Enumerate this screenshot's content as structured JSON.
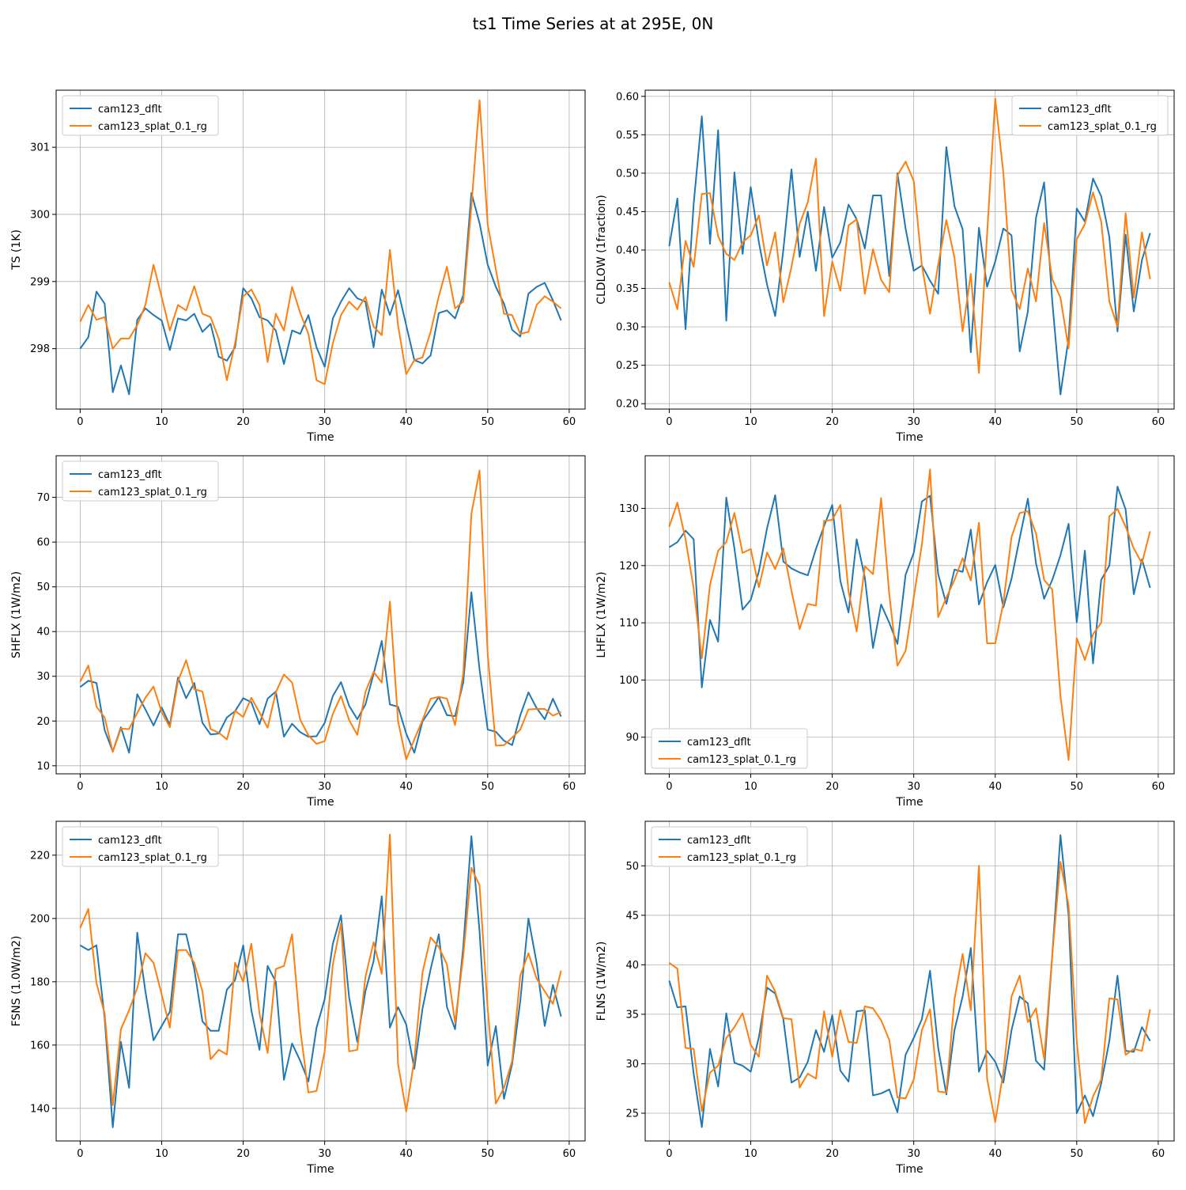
{
  "figure_title": "ts1 Time Series at at 295E, 0N",
  "colors": {
    "series1": "#1f77b4",
    "series2": "#ff7f0e",
    "grid": "#b0b0b0",
    "axis": "#000000"
  },
  "chart_data": [
    {
      "type": "line",
      "xlabel": "Time",
      "ylabel": "TS (1K)",
      "xlim": [
        -2.95,
        61.95
      ],
      "ylim": [
        297.1,
        301.85
      ],
      "xticks": [
        0,
        10,
        20,
        30,
        40,
        50,
        60
      ],
      "yticks": [
        298,
        299,
        300,
        301
      ],
      "legend_loc": "upper-left",
      "series": [
        {
          "name": "cam123_dflt",
          "values": [
            298.0,
            298.17,
            298.85,
            298.67,
            297.35,
            297.75,
            297.32,
            298.43,
            298.6,
            298.5,
            298.42,
            297.98,
            298.45,
            298.42,
            298.52,
            298.25,
            298.37,
            297.88,
            297.82,
            298.02,
            298.9,
            298.75,
            298.47,
            298.42,
            298.27,
            297.77,
            298.27,
            298.22,
            298.5,
            298.02,
            297.73,
            298.45,
            298.7,
            298.9,
            298.75,
            298.7,
            298.02,
            298.88,
            298.5,
            298.87,
            298.35,
            297.83,
            297.78,
            297.9,
            298.53,
            298.57,
            298.45,
            298.8,
            300.32,
            299.87,
            299.25,
            298.92,
            298.67,
            298.28,
            298.18,
            298.82,
            298.92,
            298.98,
            298.72,
            298.42
          ]
        },
        {
          "name": "cam123_splat_0.1_rg",
          "values": [
            298.4,
            298.65,
            298.43,
            298.47,
            298.0,
            298.15,
            298.15,
            298.35,
            298.65,
            299.25,
            298.77,
            298.27,
            298.65,
            298.57,
            298.93,
            298.52,
            298.47,
            298.15,
            297.53,
            298.08,
            298.78,
            298.88,
            298.65,
            297.8,
            298.52,
            298.27,
            298.92,
            298.53,
            298.22,
            297.53,
            297.47,
            298.08,
            298.5,
            298.7,
            298.58,
            298.77,
            298.33,
            298.2,
            299.47,
            298.35,
            297.62,
            297.83,
            297.87,
            298.25,
            298.78,
            299.22,
            298.6,
            298.7,
            300.12,
            301.7,
            299.85,
            299.18,
            298.52,
            298.5,
            298.22,
            298.25,
            298.65,
            298.78,
            298.7,
            298.6
          ]
        }
      ]
    },
    {
      "type": "line",
      "xlabel": "Time",
      "ylabel": "CLDLOW (1fraction)",
      "xlim": [
        -2.95,
        61.95
      ],
      "ylim": [
        0.193,
        0.608
      ],
      "xticks": [
        0,
        10,
        20,
        30,
        40,
        50,
        60
      ],
      "yticks": [
        0.2,
        0.25,
        0.3,
        0.35,
        0.4,
        0.45,
        0.5,
        0.55,
        0.6
      ],
      "ytick_labels": [
        "0.20",
        "0.25",
        "0.30",
        "0.35",
        "0.40",
        "0.45",
        "0.50",
        "0.55",
        "0.60"
      ],
      "legend_loc": "upper-right",
      "series": [
        {
          "name": "cam123_dflt",
          "values": [
            0.405,
            0.467,
            0.297,
            0.46,
            0.574,
            0.408,
            0.556,
            0.308,
            0.501,
            0.395,
            0.482,
            0.41,
            0.355,
            0.314,
            0.4,
            0.505,
            0.391,
            0.45,
            0.373,
            0.456,
            0.39,
            0.41,
            0.459,
            0.44,
            0.402,
            0.471,
            0.471,
            0.366,
            0.5,
            0.428,
            0.373,
            0.38,
            0.36,
            0.343,
            0.534,
            0.457,
            0.427,
            0.267,
            0.429,
            0.352,
            0.385,
            0.428,
            0.419,
            0.268,
            0.32,
            0.442,
            0.488,
            0.333,
            0.212,
            0.285,
            0.454,
            0.437,
            0.493,
            0.47,
            0.417,
            0.294,
            0.42,
            0.32,
            0.387,
            0.422
          ]
        },
        {
          "name": "cam123_splat_0.1_rg",
          "values": [
            0.358,
            0.323,
            0.412,
            0.378,
            0.473,
            0.474,
            0.418,
            0.395,
            0.387,
            0.41,
            0.419,
            0.445,
            0.38,
            0.423,
            0.332,
            0.378,
            0.434,
            0.462,
            0.519,
            0.314,
            0.385,
            0.347,
            0.432,
            0.44,
            0.343,
            0.401,
            0.361,
            0.345,
            0.497,
            0.515,
            0.49,
            0.38,
            0.317,
            0.381,
            0.439,
            0.39,
            0.294,
            0.369,
            0.24,
            0.42,
            0.597,
            0.5,
            0.348,
            0.323,
            0.376,
            0.333,
            0.435,
            0.362,
            0.338,
            0.272,
            0.414,
            0.434,
            0.475,
            0.437,
            0.333,
            0.3,
            0.448,
            0.338,
            0.423,
            0.362
          ]
        }
      ]
    },
    {
      "type": "line",
      "xlabel": "Time",
      "ylabel": "SHFLX (1W/m2)",
      "xlim": [
        -2.95,
        61.95
      ],
      "ylim": [
        8.2,
        79.3
      ],
      "xticks": [
        0,
        10,
        20,
        30,
        40,
        50,
        60
      ],
      "yticks": [
        10,
        20,
        30,
        40,
        50,
        60,
        70
      ],
      "legend_loc": "upper-left",
      "series": [
        {
          "name": "cam123_dflt",
          "values": [
            27.6,
            29.0,
            28.5,
            18.0,
            13.2,
            18.6,
            12.9,
            26.0,
            22.6,
            19.0,
            23.0,
            19.1,
            29.7,
            25.1,
            28.5,
            19.6,
            17.0,
            17.2,
            20.8,
            22.2,
            25.1,
            24.2,
            19.3,
            25.0,
            26.6,
            16.5,
            19.4,
            17.5,
            16.5,
            16.6,
            19.6,
            25.6,
            28.7,
            23.4,
            20.4,
            23.7,
            30.5,
            37.9,
            23.7,
            23.2,
            17.2,
            12.9,
            19.9,
            22.6,
            25.4,
            21.3,
            21.1,
            28.6,
            48.8,
            31.5,
            18.1,
            17.6,
            15.6,
            14.6,
            21.3,
            26.4,
            22.9,
            20.4,
            25.0,
            21.0
          ]
        },
        {
          "name": "cam123_splat_0.1_rg",
          "values": [
            28.8,
            32.4,
            23.2,
            20.8,
            13.1,
            18.3,
            18.2,
            21.8,
            25.2,
            27.7,
            22.0,
            18.6,
            28.9,
            33.6,
            27.1,
            26.6,
            18.2,
            17.4,
            15.9,
            22.3,
            20.9,
            25.2,
            21.9,
            18.5,
            26.4,
            30.4,
            28.6,
            20.3,
            16.8,
            14.9,
            15.5,
            21.6,
            25.6,
            20.2,
            16.9,
            26.5,
            31.0,
            28.6,
            46.7,
            20.0,
            11.4,
            15.9,
            20.2,
            25.0,
            25.4,
            25.0,
            19.1,
            30.6,
            66.3,
            76.0,
            34.9,
            14.5,
            14.6,
            16.3,
            18.1,
            22.6,
            22.7,
            22.7,
            21.2,
            22.0
          ]
        }
      ]
    },
    {
      "type": "line",
      "xlabel": "Time",
      "ylabel": "LHFLX (1W/m2)",
      "xlim": [
        -2.95,
        61.95
      ],
      "ylim": [
        83.6,
        139.2
      ],
      "xticks": [
        0,
        10,
        20,
        30,
        40,
        50,
        60
      ],
      "yticks": [
        90,
        100,
        110,
        120,
        130
      ],
      "legend_loc": "lower-left",
      "series": [
        {
          "name": "cam123_dflt",
          "values": [
            123.2,
            124.1,
            126.1,
            124.6,
            98.7,
            110.5,
            106.7,
            131.9,
            123.0,
            112.3,
            114.0,
            119.0,
            126.5,
            132.3,
            120.7,
            119.5,
            118.8,
            118.3,
            122.9,
            126.9,
            130.6,
            117.3,
            111.8,
            124.6,
            117.9,
            105.6,
            113.2,
            110.0,
            106.3,
            118.4,
            122.2,
            131.2,
            132.2,
            118.5,
            113.3,
            119.3,
            118.9,
            126.3,
            113.2,
            117.1,
            120.1,
            112.7,
            117.7,
            124.8,
            131.7,
            120.4,
            114.2,
            117.5,
            121.8,
            127.3,
            110.1,
            122.6,
            102.9,
            117.5,
            120.0,
            133.8,
            129.8,
            115.0,
            121.1,
            116.1
          ]
        },
        {
          "name": "cam123_splat_0.1_rg",
          "values": [
            126.8,
            131.0,
            124.6,
            116.0,
            103.8,
            116.6,
            122.6,
            124.1,
            129.2,
            122.2,
            122.9,
            116.2,
            122.3,
            119.4,
            123.0,
            115.6,
            108.9,
            113.3,
            113.0,
            127.8,
            128.0,
            130.6,
            115.5,
            108.5,
            119.9,
            118.5,
            131.8,
            115.0,
            102.5,
            105.1,
            114.4,
            123.7,
            136.8,
            111.0,
            114.4,
            117.5,
            121.3,
            117.4,
            127.5,
            106.4,
            106.4,
            113.5,
            125.0,
            129.2,
            129.5,
            125.6,
            117.5,
            115.8,
            97.2,
            86.0,
            107.3,
            103.5,
            108.0,
            110.0,
            128.6,
            129.9,
            126.8,
            123.0,
            120.4,
            126.0
          ]
        }
      ]
    },
    {
      "type": "line",
      "xlabel": "Time",
      "ylabel": "FSNS (1.0W/m2)",
      "xlim": [
        -2.95,
        61.95
      ],
      "ylim": [
        129.7,
        230.7
      ],
      "xticks": [
        0,
        10,
        20,
        30,
        40,
        50,
        60
      ],
      "yticks": [
        140,
        160,
        180,
        200,
        220
      ],
      "legend_loc": "upper-left",
      "series": [
        {
          "name": "cam123_dflt",
          "values": [
            191.5,
            190.0,
            191.5,
            168.5,
            134.0,
            161.0,
            146.5,
            195.5,
            177.0,
            161.5,
            166.0,
            170.5,
            195.0,
            195.0,
            184.0,
            167.5,
            164.5,
            164.5,
            177.5,
            180.5,
            191.5,
            171.0,
            158.5,
            185.0,
            180.0,
            149.0,
            160.5,
            155.0,
            148.5,
            165.5,
            174.5,
            192.0,
            201.0,
            175.0,
            161.0,
            177.0,
            186.5,
            207.0,
            165.5,
            172.0,
            166.5,
            152.5,
            171.5,
            184.0,
            195.0,
            172.0,
            165.0,
            191.0,
            226.0,
            196.0,
            153.5,
            166.0,
            143.0,
            154.0,
            174.0,
            200.0,
            186.0,
            166.0,
            179.0,
            169.0
          ]
        },
        {
          "name": "cam123_splat_0.1_rg",
          "values": [
            197.0,
            203.0,
            179.5,
            170.0,
            141.0,
            165.0,
            171.0,
            178.0,
            189.0,
            186.0,
            176.0,
            165.5,
            190.0,
            190.0,
            186.0,
            177.0,
            155.5,
            158.5,
            157.0,
            186.0,
            180.0,
            192.0,
            170.0,
            157.5,
            184.0,
            185.0,
            195.0,
            165.0,
            145.0,
            145.5,
            158.0,
            185.5,
            198.5,
            158.0,
            158.5,
            181.5,
            192.5,
            182.5,
            226.5,
            154.0,
            139.0,
            155.5,
            183.0,
            194.0,
            191.0,
            185.5,
            167.0,
            188.0,
            216.0,
            210.5,
            171.5,
            141.5,
            146.5,
            155.0,
            182.0,
            189.0,
            181.0,
            177.0,
            173.0,
            183.5
          ]
        }
      ]
    },
    {
      "type": "line",
      "xlabel": "Time",
      "ylabel": "FLNS (1W/m2)",
      "xlim": [
        -2.95,
        61.95
      ],
      "ylim": [
        22.2,
        54.5
      ],
      "xticks": [
        0,
        10,
        20,
        30,
        40,
        50,
        60
      ],
      "yticks": [
        25,
        30,
        35,
        40,
        45,
        50
      ],
      "legend_loc": "upper-left",
      "series": [
        {
          "name": "cam123_dflt",
          "values": [
            38.4,
            35.7,
            35.8,
            29.0,
            23.6,
            31.5,
            27.7,
            35.1,
            30.1,
            29.8,
            29.2,
            32.7,
            37.7,
            37.1,
            34.5,
            28.1,
            28.6,
            30.2,
            33.4,
            31.2,
            34.9,
            29.3,
            28.2,
            35.3,
            35.4,
            26.8,
            27.0,
            27.4,
            25.1,
            30.9,
            32.6,
            34.5,
            39.4,
            31.6,
            26.9,
            33.4,
            36.8,
            41.7,
            29.2,
            31.3,
            30.2,
            28.1,
            33.4,
            36.8,
            36.1,
            30.3,
            29.4,
            41.0,
            53.1,
            45.0,
            25.0,
            26.8,
            24.7,
            28.0,
            32.3,
            38.9,
            31.3,
            31.2,
            33.7,
            32.3
          ]
        },
        {
          "name": "cam123_splat_0.1_rg",
          "values": [
            40.2,
            39.6,
            31.6,
            31.5,
            25.2,
            29.1,
            29.8,
            32.6,
            33.7,
            35.1,
            31.9,
            30.7,
            38.9,
            37.3,
            34.6,
            34.5,
            27.6,
            29.0,
            28.5,
            35.3,
            30.7,
            35.4,
            32.2,
            32.1,
            35.8,
            35.6,
            34.4,
            32.4,
            26.6,
            26.5,
            28.4,
            33.4,
            35.5,
            27.2,
            27.1,
            36.5,
            41.1,
            35.4,
            50.0,
            28.5,
            24.1,
            29.2,
            36.8,
            38.9,
            34.2,
            35.6,
            30.5,
            41.0,
            50.4,
            46.0,
            32.3,
            24.0,
            26.7,
            28.4,
            36.6,
            36.5,
            30.9,
            31.5,
            31.3,
            35.5
          ]
        }
      ]
    }
  ]
}
